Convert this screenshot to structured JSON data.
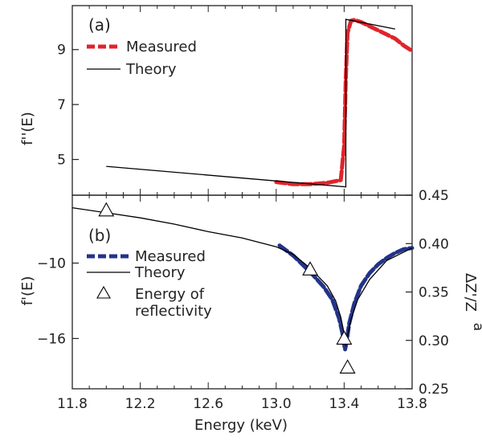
{
  "chart_data": [
    {
      "type": "line",
      "panel_label": "(a)",
      "xlabel": "Energy (keV)",
      "ylabel": "f''(E)",
      "xlim": [
        11.8,
        13.8
      ],
      "ylim": [
        3.7,
        10.6
      ],
      "yticks": [
        5,
        7,
        9
      ],
      "legend_position": "top-left",
      "series": [
        {
          "name": "Measured",
          "style": "dashed",
          "color": "#e0242b",
          "x": [
            13.0,
            13.1,
            13.2,
            13.3,
            13.38,
            13.4,
            13.41,
            13.42,
            13.44,
            13.46,
            13.5,
            13.55,
            13.6,
            13.65,
            13.7,
            13.75,
            13.8
          ],
          "y": [
            4.18,
            4.1,
            4.1,
            4.15,
            4.25,
            5.5,
            8.0,
            9.6,
            10.05,
            10.08,
            10.0,
            9.85,
            9.7,
            9.55,
            9.4,
            9.15,
            8.95
          ]
        },
        {
          "name": "Theory",
          "style": "solid",
          "color": "#000000",
          "x": [
            12.0,
            13.41,
            13.41,
            13.7
          ],
          "y": [
            4.75,
            4.0,
            10.1,
            9.75
          ]
        }
      ]
    },
    {
      "type": "line",
      "panel_label": "(b)",
      "xlabel": "Energy (keV)",
      "ylabel": "f'(E)",
      "ylabel_right": "ΔZ'/Z",
      "ylabel_right_sub": "a",
      "xlim": [
        11.8,
        13.8
      ],
      "ylim": [
        -20.0,
        -4.6
      ],
      "yticks": [
        -10,
        -16
      ],
      "xticks": [
        11.8,
        12.2,
        12.6,
        13.0,
        13.4,
        13.8
      ],
      "y2lim": [
        0.25,
        0.45
      ],
      "y2ticks": [
        0.25,
        0.3,
        0.35,
        0.4,
        0.45
      ],
      "legend_position": "left",
      "series": [
        {
          "name": "Measured",
          "style": "dashed",
          "color": "#23338a",
          "x": [
            13.02,
            13.1,
            13.2,
            13.28,
            13.33,
            13.37,
            13.39,
            13.405,
            13.415,
            13.43,
            13.46,
            13.5,
            13.55,
            13.6,
            13.65,
            13.7,
            13.75,
            13.8
          ],
          "y": [
            -8.6,
            -9.4,
            -10.7,
            -11.9,
            -12.9,
            -14.4,
            -15.6,
            -16.9,
            -16.2,
            -14.8,
            -13.2,
            -11.8,
            -10.8,
            -10.1,
            -9.6,
            -9.2,
            -8.9,
            -8.8
          ]
        },
        {
          "name": "Theory",
          "style": "solid",
          "color": "#000000",
          "x": [
            11.8,
            12.0,
            12.2,
            12.4,
            12.6,
            12.8,
            13.0,
            13.1,
            13.2,
            13.3,
            13.35,
            13.38,
            13.4,
            13.41,
            13.42,
            13.44,
            13.48,
            13.55,
            13.65,
            13.8
          ],
          "y": [
            -5.6,
            -6.0,
            -6.4,
            -6.9,
            -7.5,
            -8.0,
            -8.7,
            -9.3,
            -10.4,
            -11.8,
            -13.0,
            -14.3,
            -15.6,
            -16.6,
            -15.8,
            -14.5,
            -12.9,
            -11.3,
            -9.8,
            -8.8
          ]
        },
        {
          "name": "Energy of reflectivity",
          "style": "triangle-markers",
          "color": "#000000",
          "x": [
            12.0,
            13.2,
            13.4,
            13.42
          ],
          "y": [
            -5.8,
            -10.5,
            -16.0,
            -18.3
          ]
        }
      ]
    }
  ]
}
